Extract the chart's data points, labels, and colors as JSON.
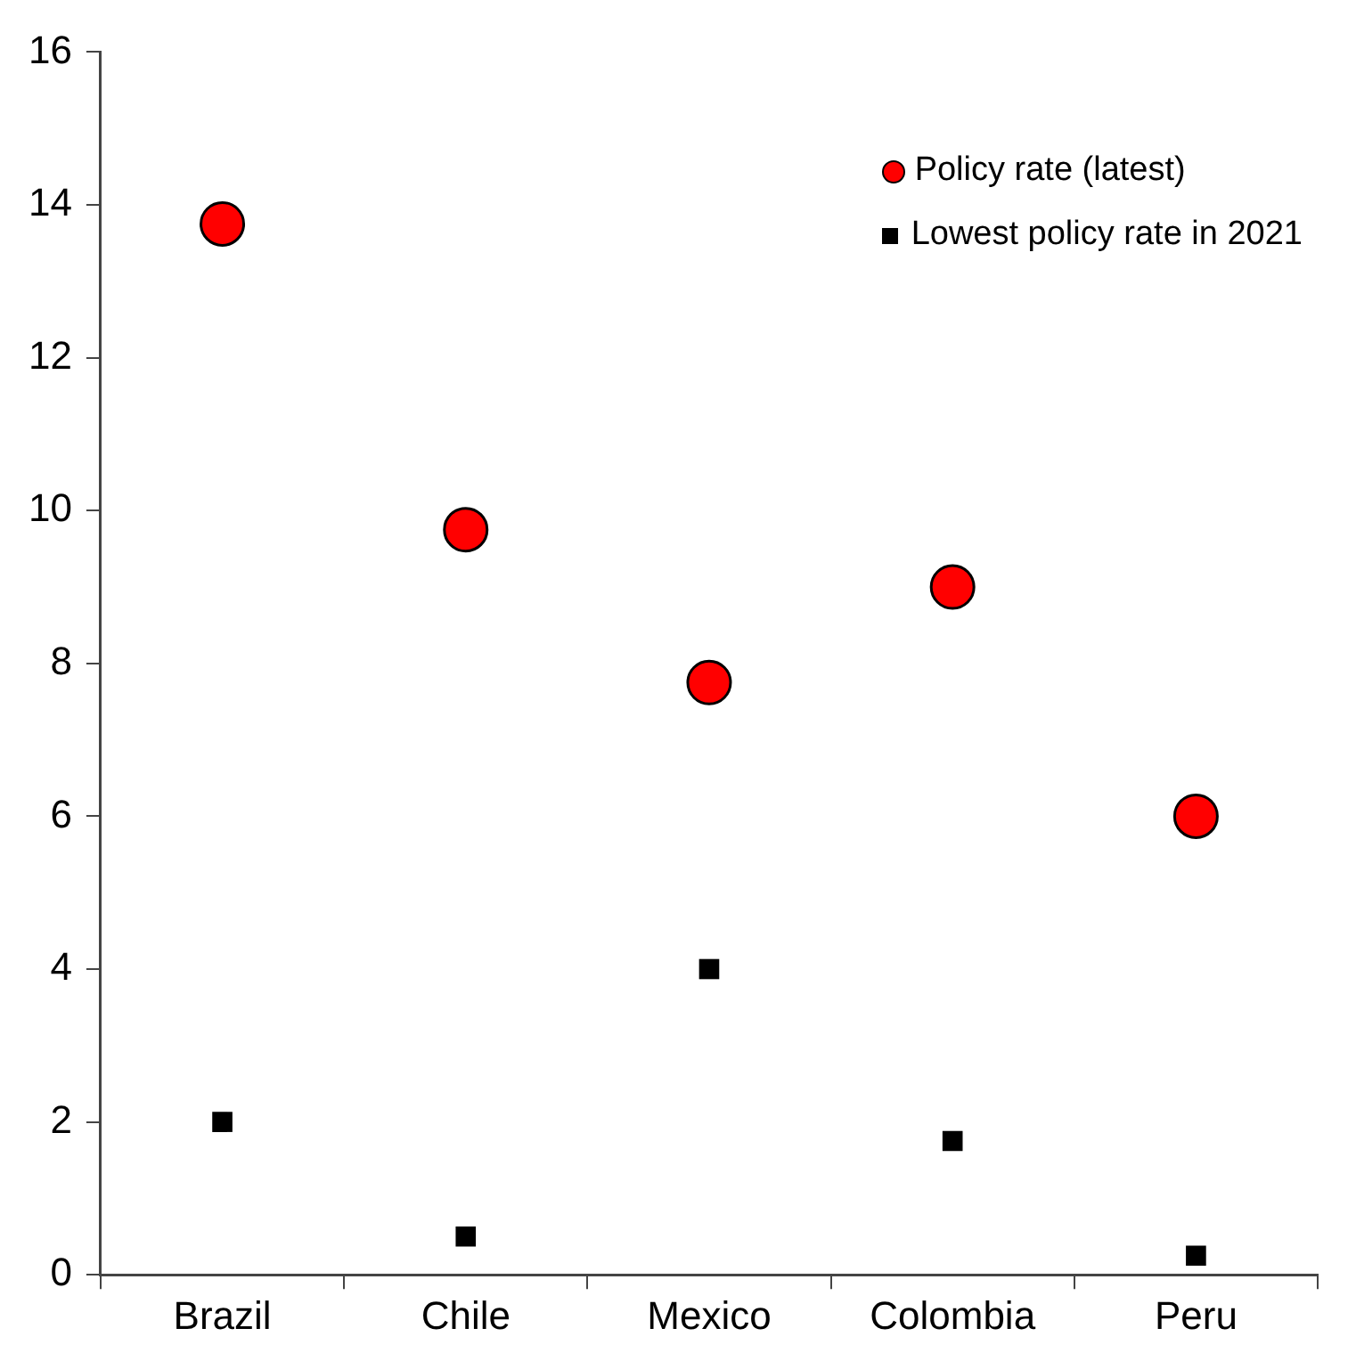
{
  "chart_data": {
    "type": "scatter",
    "categories": [
      "Brazil",
      "Chile",
      "Mexico",
      "Colombia",
      "Peru"
    ],
    "series": [
      {
        "name": "Policy rate (latest)",
        "color": "#ff0000",
        "marker": "circle",
        "values": [
          13.75,
          9.75,
          7.75,
          9.0,
          6.0
        ]
      },
      {
        "name": "Lowest policy rate in 2021",
        "color": "#000000",
        "marker": "square",
        "values": [
          2.0,
          0.5,
          4.0,
          1.75,
          0.25
        ]
      }
    ],
    "ylim": [
      0,
      16
    ],
    "yticks": [
      0,
      2,
      4,
      6,
      8,
      10,
      12,
      14,
      16
    ],
    "grid": false,
    "legend": "top right"
  }
}
